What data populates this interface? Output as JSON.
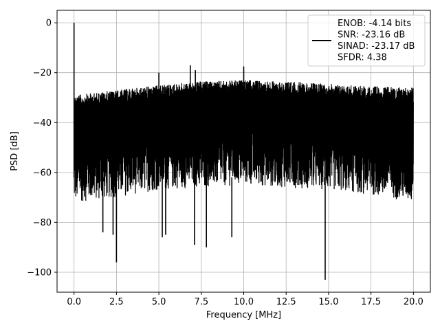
{
  "chart_data": {
    "type": "line",
    "title": "",
    "xlabel": "Frequency [MHz]",
    "ylabel": "PSD [dB]",
    "xlim": [
      -1.0,
      21.0
    ],
    "ylim": [
      -108,
      5
    ],
    "grid": true,
    "legend_placement": "top-right",
    "xticks": [
      0.0,
      2.5,
      5.0,
      7.5,
      10.0,
      12.5,
      15.0,
      17.5,
      20.0
    ],
    "xtick_labels": [
      "0.0",
      "2.5",
      "5.0",
      "7.5",
      "10.0",
      "12.5",
      "15.0",
      "17.5",
      "20.0"
    ],
    "yticks": [
      0,
      -20,
      -40,
      -60,
      -80,
      -100
    ],
    "ytick_labels": [
      "0",
      "−20",
      "−40",
      "−60",
      "−80",
      "−100"
    ],
    "series": [
      {
        "legend_lines": [
          "ENOB: -4.14 bits",
          "SNR: -23.16 dB",
          "SINAD: -23.17 dB",
          "SFDR: 4.38"
        ],
        "color": "#000000",
        "x_range": [
          0.0,
          20.0
        ],
        "peaks": [
          {
            "x": 0.0,
            "y": 0
          },
          {
            "x": 5.0,
            "y": -20
          },
          {
            "x": 6.85,
            "y": -17
          },
          {
            "x": 7.15,
            "y": -19
          },
          {
            "x": 10.0,
            "y": -17.5
          }
        ],
        "dips": [
          {
            "x": 2.5,
            "y": -96
          },
          {
            "x": 7.1,
            "y": -89
          },
          {
            "x": 7.8,
            "y": -90
          },
          {
            "x": 9.3,
            "y": -86
          },
          {
            "x": 14.8,
            "y": -103
          },
          {
            "x": 1.7,
            "y": -84
          },
          {
            "x": 2.3,
            "y": -85
          },
          {
            "x": 5.2,
            "y": -86
          },
          {
            "x": 5.4,
            "y": -85
          }
        ],
        "upper_envelope": [
          [
            0.1,
            -29
          ],
          [
            2.5,
            -27
          ],
          [
            5.0,
            -25
          ],
          [
            7.5,
            -23.5
          ],
          [
            10.0,
            -23
          ],
          [
            12.5,
            -23.5
          ],
          [
            15.0,
            -24.5
          ],
          [
            17.5,
            -25.5
          ],
          [
            20.0,
            -26
          ]
        ],
        "lower_envelope": [
          [
            0.1,
            -72
          ],
          [
            2.5,
            -70
          ],
          [
            5.0,
            -67
          ],
          [
            7.5,
            -66
          ],
          [
            10.0,
            -65
          ],
          [
            12.5,
            -66
          ],
          [
            15.0,
            -67
          ],
          [
            17.5,
            -69
          ],
          [
            20.0,
            -72
          ]
        ]
      }
    ]
  }
}
